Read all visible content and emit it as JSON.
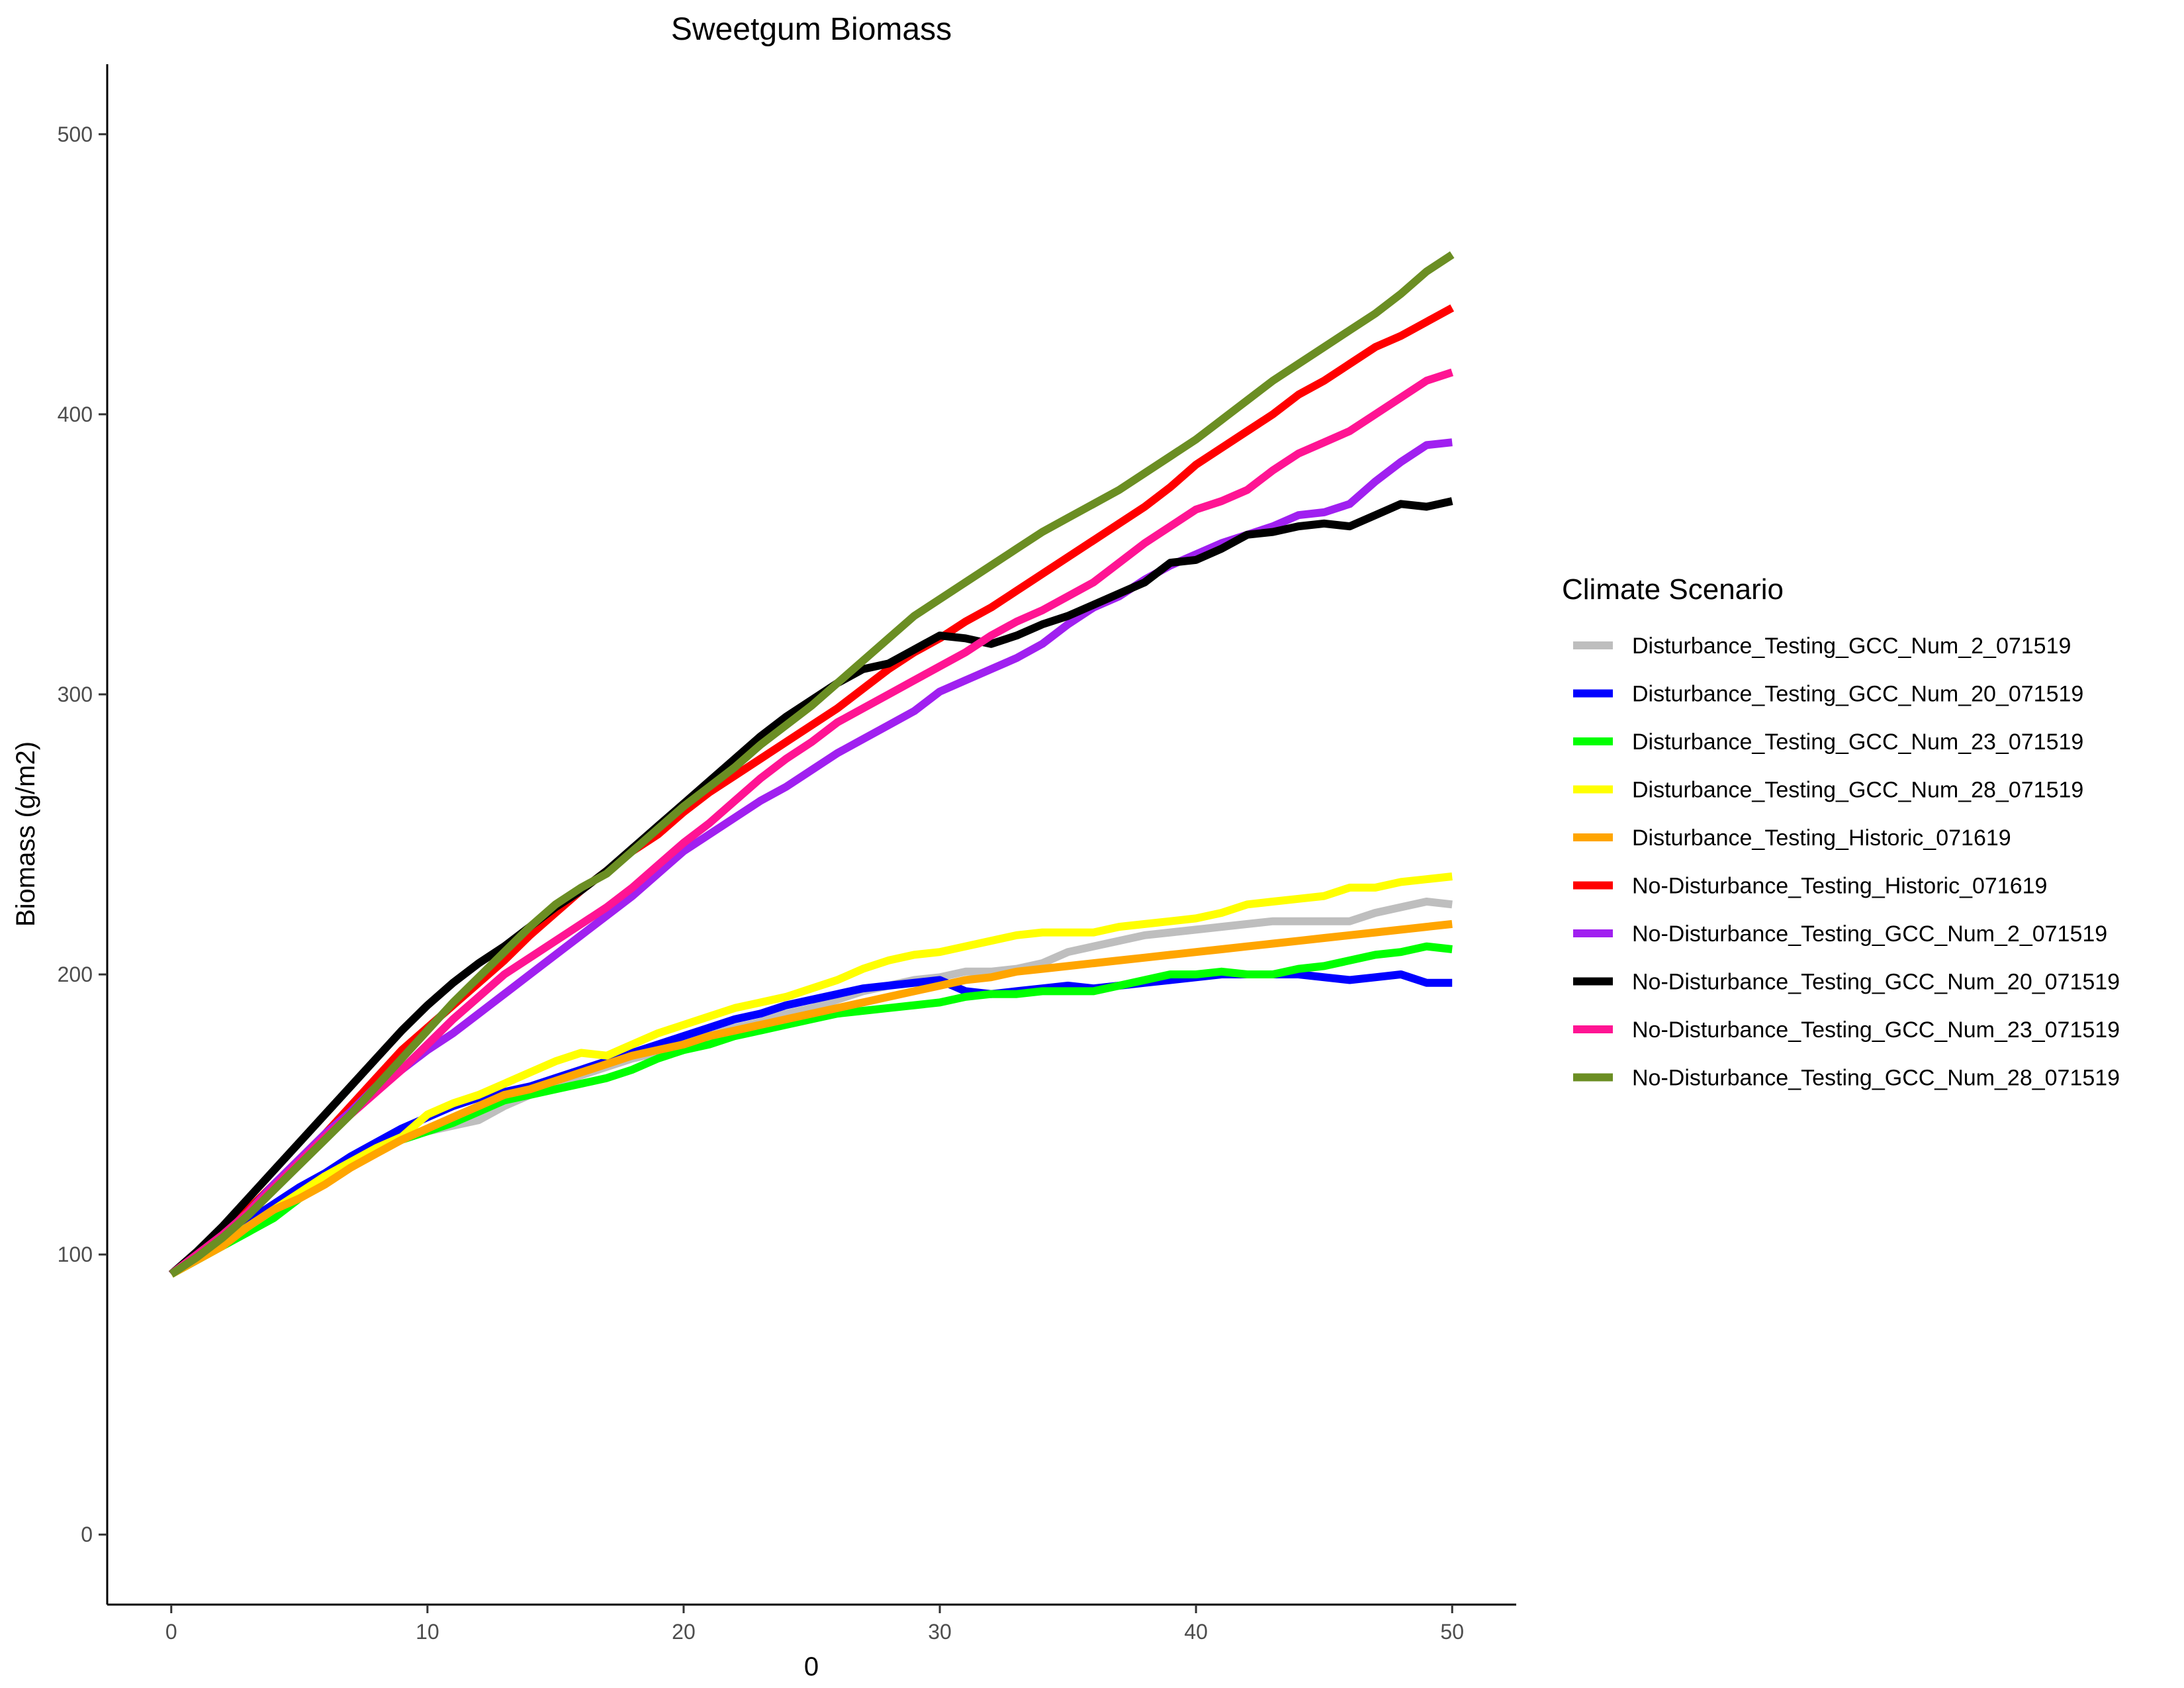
{
  "chart_data": {
    "type": "line",
    "title": "Sweetgum Biomass",
    "xlabel": "0",
    "ylabel": "Biomass (g/m2)",
    "xlim": [
      -2.5,
      52.5
    ],
    "ylim": [
      -25,
      525
    ],
    "x_ticks": [
      0,
      10,
      20,
      30,
      40,
      50
    ],
    "y_ticks": [
      0,
      100,
      200,
      300,
      400,
      500
    ],
    "grid": false,
    "legend": {
      "title": "Climate Scenario",
      "position": "right"
    },
    "x": [
      0,
      1,
      2,
      3,
      4,
      5,
      6,
      7,
      8,
      9,
      10,
      11,
      12,
      13,
      14,
      15,
      16,
      17,
      18,
      19,
      20,
      21,
      22,
      23,
      24,
      25,
      26,
      27,
      28,
      29,
      30,
      31,
      32,
      33,
      34,
      35,
      36,
      37,
      38,
      39,
      40,
      41,
      42,
      43,
      44,
      45,
      46,
      47,
      48,
      49,
      50
    ],
    "series": [
      {
        "name": "Disturbance_Testing_GCC_Num_2_071519",
        "color": "#bebebe",
        "values": [
          93,
          98,
          104,
          111,
          117,
          123,
          128,
          133,
          137,
          141,
          144,
          146,
          148,
          153,
          157,
          161,
          164,
          167,
          170,
          172,
          175,
          178,
          181,
          183,
          186,
          188,
          191,
          194,
          196,
          198,
          199,
          201,
          201,
          202,
          204,
          208,
          210,
          212,
          214,
          215,
          216,
          217,
          218,
          219,
          219,
          219,
          219,
          222,
          224,
          226,
          225
        ]
      },
      {
        "name": "Disturbance_Testing_GCC_Num_20_071519",
        "color": "#0000ff",
        "values": [
          93,
          100,
          106,
          112,
          118,
          124,
          129,
          135,
          140,
          145,
          149,
          153,
          156,
          158,
          160,
          163,
          166,
          169,
          172,
          175,
          178,
          181,
          184,
          186,
          189,
          191,
          193,
          195,
          196,
          197,
          198,
          194,
          193,
          194,
          195,
          196,
          195,
          196,
          197,
          198,
          199,
          200,
          200,
          200,
          200,
          199,
          198,
          199,
          200,
          197,
          197
        ]
      },
      {
        "name": "Disturbance_Testing_GCC_Num_23_071519",
        "color": "#00ff00",
        "values": [
          93,
          98,
          103,
          108,
          113,
          120,
          126,
          132,
          137,
          141,
          144,
          147,
          151,
          155,
          157,
          159,
          161,
          163,
          166,
          170,
          173,
          175,
          178,
          180,
          182,
          184,
          186,
          187,
          188,
          189,
          190,
          192,
          193,
          193,
          194,
          194,
          194,
          196,
          198,
          200,
          200,
          201,
          200,
          200,
          202,
          203,
          205,
          207,
          208,
          210,
          209
        ]
      },
      {
        "name": "Disturbance_Testing_GCC_Num_28_071519",
        "color": "#ffff00",
        "values": [
          93,
          99,
          104,
          110,
          116,
          122,
          128,
          133,
          138,
          142,
          150,
          154,
          157,
          161,
          165,
          169,
          172,
          171,
          175,
          179,
          182,
          185,
          188,
          190,
          192,
          195,
          198,
          202,
          205,
          207,
          208,
          210,
          212,
          214,
          215,
          215,
          215,
          217,
          218,
          219,
          220,
          222,
          225,
          226,
          227,
          228,
          231,
          231,
          233,
          234,
          235
        ]
      },
      {
        "name": "Disturbance_Testing_Historic_071619",
        "color": "#ffa500",
        "values": [
          93,
          98,
          103,
          110,
          116,
          120,
          125,
          131,
          136,
          141,
          145,
          149,
          153,
          157,
          159,
          162,
          165,
          168,
          171,
          173,
          175,
          178,
          180,
          182,
          184,
          186,
          188,
          190,
          192,
          194,
          196,
          198,
          199,
          201,
          202,
          203,
          204,
          205,
          206,
          207,
          208,
          209,
          210,
          211,
          212,
          213,
          214,
          215,
          216,
          217,
          218
        ]
      },
      {
        "name": "No-Disturbance_Testing_Historic_071619",
        "color": "#ff0000",
        "values": [
          93,
          100,
          107,
          116,
          125,
          134,
          143,
          153,
          163,
          173,
          181,
          189,
          197,
          205,
          214,
          222,
          230,
          237,
          244,
          250,
          258,
          265,
          271,
          277,
          283,
          289,
          295,
          302,
          309,
          315,
          320,
          326,
          331,
          337,
          343,
          349,
          355,
          361,
          367,
          374,
          382,
          388,
          394,
          400,
          407,
          412,
          418,
          424,
          428,
          433,
          438
        ]
      },
      {
        "name": "No-Disturbance_Testing_GCC_Num_2_071519",
        "color": "#a020f0",
        "values": [
          93,
          100,
          107,
          115,
          125,
          134,
          143,
          151,
          160,
          166,
          173,
          179,
          186,
          193,
          200,
          207,
          214,
          221,
          228,
          236,
          244,
          250,
          256,
          262,
          267,
          273,
          279,
          284,
          289,
          294,
          301,
          305,
          309,
          313,
          318,
          325,
          331,
          335,
          341,
          346,
          350,
          354,
          357,
          360,
          364,
          365,
          368,
          376,
          383,
          389,
          390
        ]
      },
      {
        "name": "No-Disturbance_Testing_GCC_Num_20_071519",
        "color": "#000000",
        "values": [
          93,
          101,
          110,
          120,
          130,
          140,
          150,
          160,
          170,
          180,
          189,
          197,
          204,
          210,
          217,
          224,
          230,
          237,
          245,
          253,
          261,
          269,
          277,
          285,
          292,
          298,
          304,
          309,
          311,
          316,
          321,
          320,
          318,
          321,
          325,
          328,
          332,
          336,
          340,
          347,
          348,
          352,
          357,
          358,
          360,
          361,
          360,
          364,
          368,
          367,
          369
        ]
      },
      {
        "name": "No-Disturbance_Testing_GCC_Num_23_071519",
        "color": "#ff1493",
        "values": [
          93,
          100,
          107,
          115,
          124,
          133,
          142,
          150,
          158,
          166,
          175,
          184,
          192,
          200,
          206,
          212,
          218,
          224,
          231,
          239,
          247,
          254,
          262,
          270,
          277,
          283,
          290,
          295,
          300,
          305,
          310,
          315,
          321,
          326,
          330,
          335,
          340,
          347,
          354,
          360,
          366,
          369,
          373,
          380,
          386,
          390,
          394,
          400,
          406,
          412,
          415
        ]
      },
      {
        "name": "No-Disturbance_Testing_GCC_Num_28_071519",
        "color": "#6b8e23",
        "values": [
          93,
          99,
          106,
          114,
          123,
          132,
          141,
          150,
          160,
          170,
          180,
          190,
          199,
          208,
          217,
          225,
          231,
          236,
          244,
          252,
          260,
          267,
          274,
          282,
          289,
          296,
          304,
          312,
          320,
          328,
          334,
          340,
          346,
          352,
          358,
          363,
          368,
          373,
          379,
          385,
          391,
          398,
          405,
          412,
          418,
          424,
          430,
          436,
          443,
          451,
          457
        ]
      }
    ]
  }
}
